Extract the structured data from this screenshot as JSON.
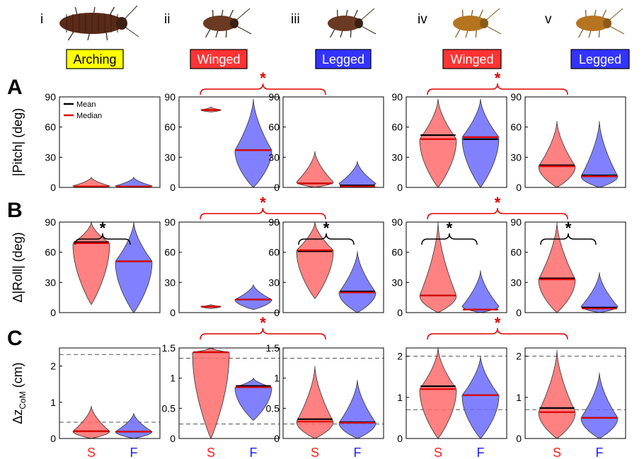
{
  "columns": [
    {
      "roman": "i",
      "label": "Arching",
      "label_bg": "#ffff00"
    },
    {
      "roman": "ii",
      "label": "Winged",
      "label_bg": "#ff3333"
    },
    {
      "roman": "iii",
      "label": "Legged",
      "label_bg": "#3333ff"
    },
    {
      "roman": "iv",
      "label": "Winged",
      "label_bg": "#ff3333"
    },
    {
      "roman": "v",
      "label": "Legged",
      "label_bg": "#3333ff"
    }
  ],
  "rows": [
    {
      "letter": "A",
      "ylabel": "|Pitch| (deg)"
    },
    {
      "letter": "B",
      "ylabel": "Δ|Roll| (deg)"
    },
    {
      "letter": "C",
      "ylabel": "Δz",
      "ylabel_sub": "CoM",
      "ylabel_unit": " (cm)"
    }
  ],
  "legend": {
    "mean": "Mean",
    "median": "Median"
  },
  "categories": [
    "S",
    "F"
  ],
  "significance_mark": "*",
  "colors": {
    "S": "#ff6b6b",
    "F": "#6b6bff",
    "mean": "#000000",
    "median": "#e00000",
    "sig_red": "#e00000",
    "sig_black": "#000000"
  },
  "chart_data": [
    {
      "type": "violin",
      "panel": "A-i",
      "ylim": [
        0,
        90
      ],
      "yticks": [
        0,
        30,
        60,
        90
      ],
      "series": [
        {
          "name": "S",
          "mean": 1,
          "median": 1,
          "max": 10
        },
        {
          "name": "F",
          "mean": 1,
          "median": 1,
          "max": 10
        }
      ]
    },
    {
      "type": "violin",
      "panel": "A-ii",
      "ylim": [
        0,
        90
      ],
      "yticks": [
        0,
        30,
        60,
        90
      ],
      "series": [
        {
          "name": "S",
          "mean": 77,
          "median": 77,
          "min": 75,
          "max": 80
        },
        {
          "name": "F",
          "mean": 37,
          "median": 37,
          "min": 0,
          "max": 88
        }
      ]
    },
    {
      "type": "violin",
      "panel": "A-iii",
      "ylim": [
        0,
        90
      ],
      "yticks": [
        0,
        30,
        60,
        90
      ],
      "series": [
        {
          "name": "S",
          "mean": 4,
          "median": 4,
          "min": 0,
          "max": 36
        },
        {
          "name": "F",
          "mean": 2,
          "median": 1,
          "min": 0,
          "max": 26
        }
      ]
    },
    {
      "type": "violin",
      "panel": "A-iv",
      "ylim": [
        0,
        90
      ],
      "yticks": [
        0,
        30,
        60,
        90
      ],
      "series": [
        {
          "name": "S",
          "mean": 52,
          "median": 48,
          "min": 0,
          "max": 88
        },
        {
          "name": "F",
          "mean": 48,
          "median": 50,
          "min": 0,
          "max": 88
        }
      ]
    },
    {
      "type": "violin",
      "panel": "A-v",
      "ylim": [
        0,
        90
      ],
      "yticks": [
        0,
        30,
        60,
        90
      ],
      "series": [
        {
          "name": "S",
          "mean": 22,
          "median": 21,
          "min": 0,
          "max": 66
        },
        {
          "name": "F",
          "mean": 12,
          "median": 11,
          "min": 0,
          "max": 66
        }
      ]
    },
    {
      "type": "violin",
      "panel": "B-i",
      "ylim": [
        0,
        90
      ],
      "yticks": [
        0,
        30,
        60,
        90
      ],
      "series": [
        {
          "name": "S",
          "mean": 70,
          "median": 69,
          "min": 8,
          "max": 90
        },
        {
          "name": "F",
          "mean": 51,
          "median": 51,
          "min": 0,
          "max": 90
        }
      ]
    },
    {
      "type": "violin",
      "panel": "B-ii",
      "ylim": [
        0,
        90
      ],
      "yticks": [
        0,
        30,
        60,
        90
      ],
      "series": [
        {
          "name": "S",
          "mean": 6,
          "median": 6,
          "min": 4,
          "max": 8
        },
        {
          "name": "F",
          "mean": 13,
          "median": 13,
          "min": 3,
          "max": 28
        }
      ]
    },
    {
      "type": "violin",
      "panel": "B-iii",
      "ylim": [
        0,
        90
      ],
      "yticks": [
        0,
        30,
        60,
        90
      ],
      "series": [
        {
          "name": "S",
          "mean": 61,
          "median": 62,
          "min": 14,
          "max": 90
        },
        {
          "name": "F",
          "mean": 21,
          "median": 20,
          "min": 0,
          "max": 61
        }
      ]
    },
    {
      "type": "violin",
      "panel": "B-iv",
      "ylim": [
        0,
        90
      ],
      "yticks": [
        0,
        30,
        60,
        90
      ],
      "series": [
        {
          "name": "S",
          "mean": 17,
          "median": 17,
          "min": 0,
          "max": 90
        },
        {
          "name": "F",
          "mean": 3,
          "median": 3,
          "min": 0,
          "max": 42
        }
      ]
    },
    {
      "type": "violin",
      "panel": "B-v",
      "ylim": [
        0,
        90
      ],
      "yticks": [
        0,
        30,
        60,
        90
      ],
      "series": [
        {
          "name": "S",
          "mean": 34,
          "median": 33,
          "min": 0,
          "max": 90
        },
        {
          "name": "F",
          "mean": 5,
          "median": 4,
          "min": 0,
          "max": 40
        }
      ]
    },
    {
      "type": "violin",
      "panel": "C-i",
      "ylim": [
        0,
        2.5
      ],
      "yticks": [
        0,
        1,
        2
      ],
      "hlines": [
        2.32,
        0.45
      ],
      "series": [
        {
          "name": "S",
          "mean": 0.2,
          "median": 0.2,
          "min": 0,
          "max": 0.9
        },
        {
          "name": "F",
          "mean": 0.19,
          "median": 0.19,
          "min": 0,
          "max": 0.7
        }
      ]
    },
    {
      "type": "violin",
      "panel": "C-ii",
      "ylim": [
        0,
        1.5
      ],
      "yticks": [
        0,
        0.5,
        1,
        1.5
      ],
      "hlines": [
        1.33,
        0.24
      ],
      "series": [
        {
          "name": "S",
          "mean": 1.43,
          "median": 1.43,
          "min": 0,
          "max": 1.5
        },
        {
          "name": "F",
          "mean": 0.87,
          "median": 0.85,
          "min": 0.3,
          "max": 1.0
        }
      ]
    },
    {
      "type": "violin",
      "panel": "C-iii",
      "ylim": [
        0,
        1.5
      ],
      "yticks": [
        0,
        0.5,
        1,
        1.5
      ],
      "hlines": [
        1.33,
        0.24
      ],
      "series": [
        {
          "name": "S",
          "mean": 0.32,
          "median": 0.28,
          "min": 0,
          "max": 1.2
        },
        {
          "name": "F",
          "mean": 0.27,
          "median": 0.26,
          "min": 0,
          "max": 0.97
        }
      ]
    },
    {
      "type": "violin",
      "panel": "C-iv",
      "ylim": [
        0,
        2.2
      ],
      "yticks": [
        0,
        1,
        2
      ],
      "hlines": [
        2.0,
        0.7
      ],
      "series": [
        {
          "name": "S",
          "mean": 1.27,
          "median": 1.2,
          "min": 0,
          "max": 2.2
        },
        {
          "name": "F",
          "mean": 1.05,
          "median": 1.05,
          "min": 0,
          "max": 2.0
        }
      ]
    },
    {
      "type": "violin",
      "panel": "C-v",
      "ylim": [
        0,
        2.2
      ],
      "yticks": [
        0,
        1,
        2
      ],
      "hlines": [
        2.0,
        0.7
      ],
      "series": [
        {
          "name": "S",
          "mean": 0.74,
          "median": 0.64,
          "min": 0,
          "max": 2.15
        },
        {
          "name": "F",
          "mean": 0.5,
          "median": 0.5,
          "min": 0,
          "max": 1.6
        }
      ]
    }
  ],
  "significance": {
    "red": [
      {
        "row": 0,
        "from": 1,
        "to": 2
      },
      {
        "row": 0,
        "from": 3,
        "to": 4
      },
      {
        "row": 1,
        "from": 1,
        "to": 2
      },
      {
        "row": 1,
        "from": 3,
        "to": 4
      },
      {
        "row": 2,
        "from": 1,
        "to": 2
      },
      {
        "row": 2,
        "from": 3,
        "to": 4
      }
    ],
    "black": [
      {
        "row": 1,
        "col": 0
      },
      {
        "row": 1,
        "col": 2
      },
      {
        "row": 1,
        "col": 3
      },
      {
        "row": 1,
        "col": 4
      }
    ]
  }
}
